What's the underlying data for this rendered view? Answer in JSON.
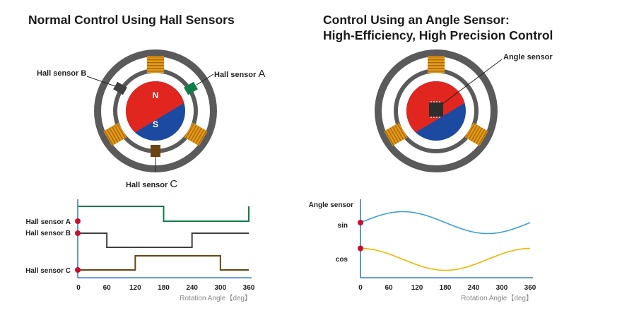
{
  "left_title": "Normal Control Using Hall Sensors",
  "right_title_line1": "Control Using an Angle Sensor:",
  "right_title_line2": "High-Efficiency, High Precision Control",
  "labels": {
    "hall_b": "Hall sensor B",
    "hall_a_prefix": "Hall sensor ",
    "hall_a_letter": "A",
    "hall_c_prefix": "Hall sensor ",
    "hall_c_letter": "C",
    "angle_sensor": "Angle sensor",
    "north": "N",
    "south": "S"
  },
  "colors": {
    "hall_a": "#137a4a",
    "hall_b": "#404040",
    "hall_c": "#6b4413",
    "sin": "#3a9fd6",
    "cos": "#f0b400",
    "marker": "#c8102e",
    "north": "#e0261e",
    "south": "#1b4aa0"
  },
  "chart_data": [
    {
      "type": "line",
      "title": "",
      "xlabel": "Rotation Angle【deg】",
      "ylabel": "",
      "x_ticks": [
        "0",
        "60",
        "120",
        "180",
        "240",
        "300",
        "360"
      ],
      "xlim": [
        0,
        360
      ],
      "series": [
        {
          "name": "Hall sensor A",
          "step": true,
          "transitions": [
            0,
            180,
            360
          ],
          "start": "high"
        },
        {
          "name": "Hall sensor B",
          "step": true,
          "transitions": [
            60,
            240
          ],
          "start": "high"
        },
        {
          "name": "Hall sensor C",
          "step": true,
          "transitions": [
            120,
            300
          ],
          "start": "low"
        }
      ]
    },
    {
      "type": "line",
      "title": "Angle sensor",
      "xlabel": "Rotation Angle【deg】",
      "ylabel": "Angle sensor",
      "x_ticks": [
        "0",
        "60",
        "120",
        "180",
        "240",
        "300",
        "360"
      ],
      "xlim": [
        0,
        360
      ],
      "series": [
        {
          "name": "sin",
          "function": "sin",
          "x": [
            0,
            90,
            180,
            270,
            360
          ],
          "values": [
            0,
            1,
            0,
            -1,
            0
          ]
        },
        {
          "name": "cos",
          "function": "cos",
          "x": [
            0,
            90,
            180,
            270,
            360
          ],
          "values": [
            1,
            0,
            -1,
            0,
            1
          ]
        }
      ]
    }
  ]
}
